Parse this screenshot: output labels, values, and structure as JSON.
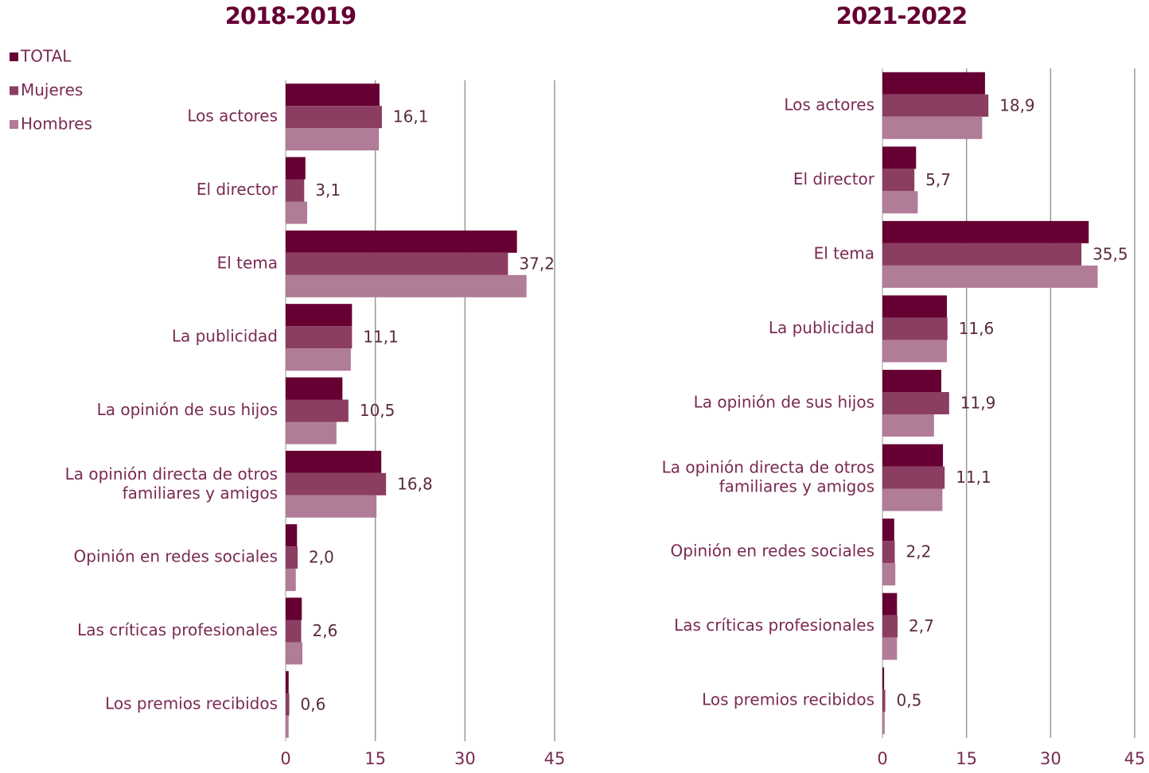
{
  "chart_data": [
    {
      "type": "barh",
      "title": "2018-2019",
      "categories": [
        "Los actores",
        "El director",
        "El tema",
        "La publicidad",
        "La opinión de sus hijos",
        "La opinión directa de otros\nfamiliares y amigos",
        "Opinión en redes sociales",
        "Las críticas profesionales",
        "Los premios recibidos"
      ],
      "series": [
        {
          "name": "TOTAL",
          "color": "#660033",
          "values": [
            15.7,
            3.3,
            38.7,
            11.1,
            9.5,
            16.0,
            1.9,
            2.7,
            0.5
          ]
        },
        {
          "name": "Mujeres",
          "color": "#8b3d62",
          "values": [
            16.1,
            3.1,
            37.2,
            11.1,
            10.5,
            16.8,
            2.0,
            2.6,
            0.6
          ],
          "value_labels": [
            "16,1",
            "3,1",
            "37,2",
            "11,1",
            "10,5",
            "16,8",
            "2,0",
            "2,6",
            "0,6"
          ]
        },
        {
          "name": "Hombres",
          "color": "#b07c98",
          "values": [
            15.6,
            3.6,
            40.3,
            10.9,
            8.5,
            15.2,
            1.7,
            2.8,
            0.5
          ]
        }
      ],
      "xlim": [
        0,
        45
      ],
      "xticks": [
        0,
        15,
        30,
        45
      ],
      "grid": true,
      "legend": "upper left"
    },
    {
      "type": "barh",
      "title": "2021-2022",
      "categories": [
        "Los actores",
        "El director",
        "El tema",
        "La publicidad",
        "La opinión de sus hijos",
        "La opinión directa de otros\nfamiliares y amigos",
        "Opinión en redes sociales",
        "Las críticas profesionales",
        "Los premios recibidos"
      ],
      "series": [
        {
          "name": "TOTAL",
          "color": "#660033",
          "values": [
            18.3,
            6.0,
            36.8,
            11.5,
            10.5,
            10.8,
            2.1,
            2.6,
            0.3
          ]
        },
        {
          "name": "Mujeres",
          "color": "#8b3d62",
          "values": [
            18.9,
            5.7,
            35.5,
            11.6,
            11.9,
            11.1,
            2.2,
            2.7,
            0.5
          ],
          "value_labels": [
            "18,9",
            "5,7",
            "35,5",
            "11,6",
            "11,9",
            "11,1",
            "2,2",
            "2,7",
            "0,5"
          ]
        },
        {
          "name": "Hombres",
          "color": "#b07c98",
          "values": [
            17.8,
            6.3,
            38.4,
            11.5,
            9.2,
            10.7,
            2.3,
            2.6,
            0.4
          ]
        }
      ],
      "xlim": [
        0,
        45
      ],
      "xticks": [
        0,
        15,
        30,
        45
      ],
      "grid": true,
      "legend": false
    }
  ]
}
